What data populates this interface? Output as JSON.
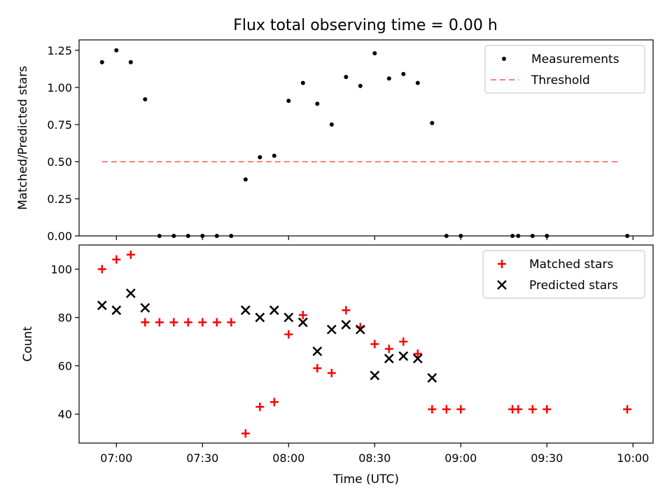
{
  "figure": {
    "title": "Flux total observing time = 0.00 h"
  },
  "chart_data": [
    {
      "type": "scatter",
      "title": "Flux total observing time = 0.00 h",
      "xlabel": "",
      "ylabel": "Matched/Predicted stars",
      "xlim_minutes": [
        407,
        607
      ],
      "ylim": [
        0,
        1.32
      ],
      "x_tick_labels": [],
      "y_ticks": [
        0.0,
        0.25,
        0.5,
        0.75,
        1.0,
        1.25
      ],
      "y_tick_labels": [
        "0.00",
        "0.25",
        "0.50",
        "0.75",
        "1.00",
        "1.25"
      ],
      "legend_position": "top-right",
      "series": [
        {
          "name": "Measurements",
          "marker": "dot",
          "color": "#000000",
          "x": [
            "06:55",
            "07:00",
            "07:05",
            "07:10",
            "07:15",
            "07:20",
            "07:25",
            "07:30",
            "07:35",
            "07:40",
            "07:45",
            "07:50",
            "07:55",
            "08:00",
            "08:05",
            "08:10",
            "08:15",
            "08:20",
            "08:25",
            "08:30",
            "08:35",
            "08:40",
            "08:45",
            "08:50",
            "08:55",
            "09:00",
            "09:18",
            "09:20",
            "09:25",
            "09:30",
            "09:58"
          ],
          "y": [
            1.17,
            1.25,
            1.17,
            0.92,
            0,
            0,
            0,
            0,
            0,
            0,
            0.38,
            0.53,
            0.54,
            0.91,
            1.03,
            0.89,
            0.75,
            1.07,
            1.01,
            1.23,
            1.06,
            1.09,
            1.03,
            0.76,
            0,
            0,
            0,
            0,
            0,
            0,
            0
          ]
        },
        {
          "name": "Threshold",
          "marker": "dashed-line",
          "color": "#ff7f7f",
          "x": [
            "06:55",
            "09:55"
          ],
          "y": [
            0.5,
            0.5
          ]
        }
      ]
    },
    {
      "type": "scatter",
      "title": "",
      "xlabel": "Time (UTC)",
      "ylabel": "Count",
      "xlim_minutes": [
        407,
        607
      ],
      "ylim": [
        28,
        110
      ],
      "x_tick_values": [
        "07:00",
        "07:30",
        "08:00",
        "08:30",
        "09:00",
        "09:30",
        "10:00"
      ],
      "x_tick_labels": [
        "07:00",
        "07:30",
        "08:00",
        "08:30",
        "09:00",
        "09:30",
        "10:00"
      ],
      "y_ticks": [
        40,
        60,
        80,
        100
      ],
      "y_tick_labels": [
        "40",
        "60",
        "80",
        "100"
      ],
      "legend_position": "top-right",
      "series": [
        {
          "name": "Matched stars",
          "marker": "plus",
          "color": "#ff0000",
          "x": [
            "06:55",
            "07:00",
            "07:05",
            "07:10",
            "07:15",
            "07:20",
            "07:25",
            "07:30",
            "07:35",
            "07:40",
            "07:45",
            "07:50",
            "07:55",
            "08:00",
            "08:05",
            "08:10",
            "08:15",
            "08:20",
            "08:25",
            "08:30",
            "08:35",
            "08:40",
            "08:45",
            "08:50",
            "08:55",
            "09:00",
            "09:18",
            "09:20",
            "09:25",
            "09:30",
            "09:58"
          ],
          "y": [
            100,
            104,
            106,
            78,
            78,
            78,
            78,
            78,
            78,
            78,
            32,
            43,
            45,
            73,
            81,
            59,
            57,
            83,
            76,
            69,
            67,
            70,
            65,
            42,
            42,
            42,
            42,
            42,
            42,
            42,
            42
          ]
        },
        {
          "name": "Predicted stars",
          "marker": "x",
          "color": "#000000",
          "x": [
            "06:55",
            "07:00",
            "07:05",
            "07:10",
            "07:45",
            "07:50",
            "07:55",
            "08:00",
            "08:05",
            "08:10",
            "08:15",
            "08:20",
            "08:25",
            "08:30",
            "08:35",
            "08:40",
            "08:45",
            "08:50"
          ],
          "y": [
            85,
            83,
            90,
            84,
            83,
            80,
            83,
            80,
            78,
            66,
            75,
            77,
            75,
            56,
            63,
            64,
            63,
            55
          ]
        }
      ]
    }
  ]
}
